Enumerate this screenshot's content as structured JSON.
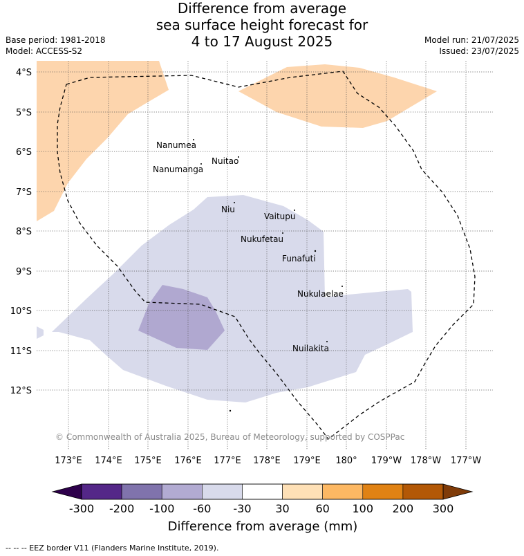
{
  "title": {
    "line1": "Difference from average",
    "line2": "sea surface height forecast for",
    "line3": "4 to 17 August 2025"
  },
  "meta": {
    "base_period": "Base period: 1981-2018",
    "model": "Model: ACCESS-S2",
    "model_run": "Model run: 21/07/2025",
    "issued": "Issued: 23/07/2025"
  },
  "copyright": "© Commonwealth of Australia 2025, Bureau of Meteorology, supported by COSPPac",
  "lat_labels": [
    "4°S",
    "5°S",
    "6°S",
    "7°S",
    "8°S",
    "9°S",
    "10°S",
    "11°S",
    "12°S"
  ],
  "lon_labels": [
    "173°E",
    "174°E",
    "175°E",
    "176°E",
    "177°E",
    "178°E",
    "179°E",
    "180°",
    "179°W",
    "178°W",
    "177°W"
  ],
  "islands": [
    {
      "name": "Nanumea"
    },
    {
      "name": "Nuitao"
    },
    {
      "name": "Nanumanga"
    },
    {
      "name": "Niu"
    },
    {
      "name": "Vaitupu"
    },
    {
      "name": "Nukufetau"
    },
    {
      "name": "Funafuti"
    },
    {
      "name": "Nukulaelae"
    },
    {
      "name": "Nuilakita"
    }
  ],
  "colorbar": {
    "ticks": [
      "-300",
      "-200",
      "-100",
      "-60",
      "-30",
      "30",
      "60",
      "100",
      "200",
      "300"
    ],
    "colors": [
      "#542788",
      "#8073ac",
      "#b2abd2",
      "#d8daeb",
      "#ffffff",
      "#fee0b6",
      "#fdb863",
      "#e08214",
      "#b35806"
    ],
    "under_color": "#2d004b",
    "over_color": "#7f3b08",
    "label": "Difference from average (mm)"
  },
  "legend_footer": "-- -- -- EEZ border V11 (Flanders Marine Institute, 2019)."
}
